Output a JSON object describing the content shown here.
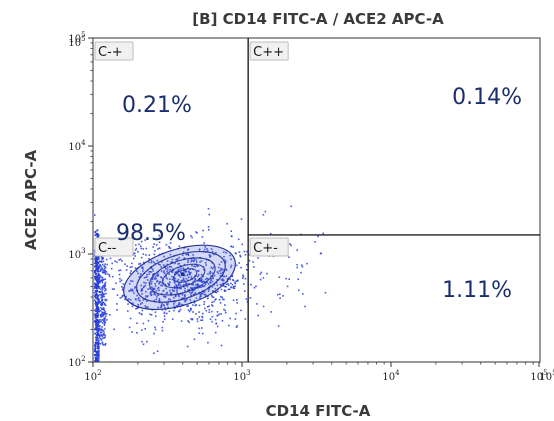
{
  "chart_data": {
    "type": "scatter",
    "title": "[B] CD14 FITC-A / ACE2 APC-A",
    "xlabel": "CD14 FITC-A",
    "ylabel": "ACE2 APC-A",
    "x_scale": "log",
    "y_scale": "log",
    "xlim": [
      100,
      100000
    ],
    "ylim": [
      100,
      100000
    ],
    "x_ticks": [
      {
        "base": "10",
        "exp": "2"
      },
      {
        "base": "10",
        "exp": "3"
      },
      {
        "base": "10",
        "exp": "4"
      },
      {
        "base": "10",
        "exp": "5"
      },
      {
        "base": "10",
        "exp": "5"
      }
    ],
    "x_tick_values": [
      100,
      1000,
      10000,
      100000,
      100000
    ],
    "y_ticks": [
      {
        "base": "10",
        "exp": "2"
      },
      {
        "base": "10",
        "exp": "3"
      },
      {
        "base": "10",
        "exp": "4"
      },
      {
        "base": "10",
        "exp": "5"
      },
      {
        "base": "10",
        "exp": "5"
      }
    ],
    "y_tick_values": [
      100,
      1000,
      10000,
      100000,
      100000
    ],
    "gates": {
      "x_threshold": 1100,
      "y_threshold": 1500
    },
    "quadrants": [
      {
        "name": "C-+",
        "percent": "0.21%"
      },
      {
        "name": "C++",
        "percent": "0.14%"
      },
      {
        "name": "C--",
        "percent": "98.5%"
      },
      {
        "name": "C+-",
        "percent": "1.11%"
      }
    ],
    "population_center": {
      "x": 400,
      "y": 650
    },
    "colors": {
      "dots": "#2b3fd8",
      "contour": "#1e2f8a",
      "text": "#1a2f6e"
    }
  }
}
